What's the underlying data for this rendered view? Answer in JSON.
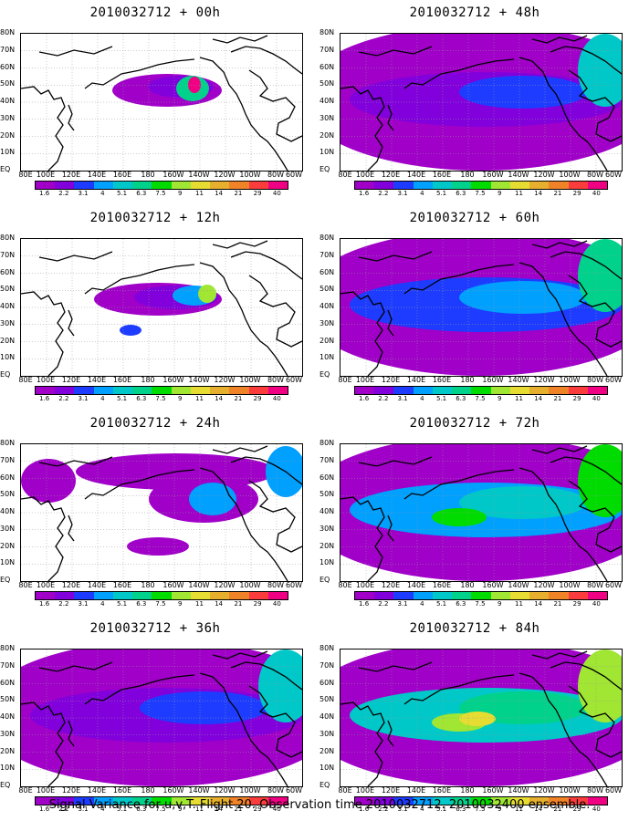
{
  "panels": [
    {
      "title": "2010032712 + 00h",
      "level": 0
    },
    {
      "title": "2010032712 + 48h",
      "level": 3
    },
    {
      "title": "2010032712 + 12h",
      "level": 1
    },
    {
      "title": "2010032712 + 60h",
      "level": 4
    },
    {
      "title": "2010032712 + 24h",
      "level": 2
    },
    {
      "title": "2010032712 + 72h",
      "level": 5
    },
    {
      "title": "2010032712 + 36h",
      "level": 3
    },
    {
      "title": "2010032712 + 84h",
      "level": 6
    }
  ],
  "lat_labels": [
    "80N",
    "70N",
    "60N",
    "50N",
    "40N",
    "30N",
    "20N",
    "10N",
    "EQ"
  ],
  "lon_labels": [
    "80E",
    "100E",
    "120E",
    "140E",
    "160E",
    "180",
    "160W",
    "140W",
    "120W",
    "100W",
    "80W",
    "60W"
  ],
  "colorbar": {
    "labels": [
      "1.6",
      "2.2",
      "3.1",
      "4",
      "5.1",
      "6.3",
      "7.5",
      "9",
      "11",
      "14",
      "21",
      "29",
      "40"
    ],
    "colors": [
      "#a000c8",
      "#8200dc",
      "#1e3cff",
      "#00a0ff",
      "#00c8c8",
      "#00d28c",
      "#00dc00",
      "#a0e632",
      "#e6dc32",
      "#e6af2d",
      "#f08228",
      "#fa3c3c",
      "#f00082"
    ]
  },
  "footer": "Signal Variance for u,v,T. Flight 20. Observation time 2010032712. 2010032400 ensemble."
}
